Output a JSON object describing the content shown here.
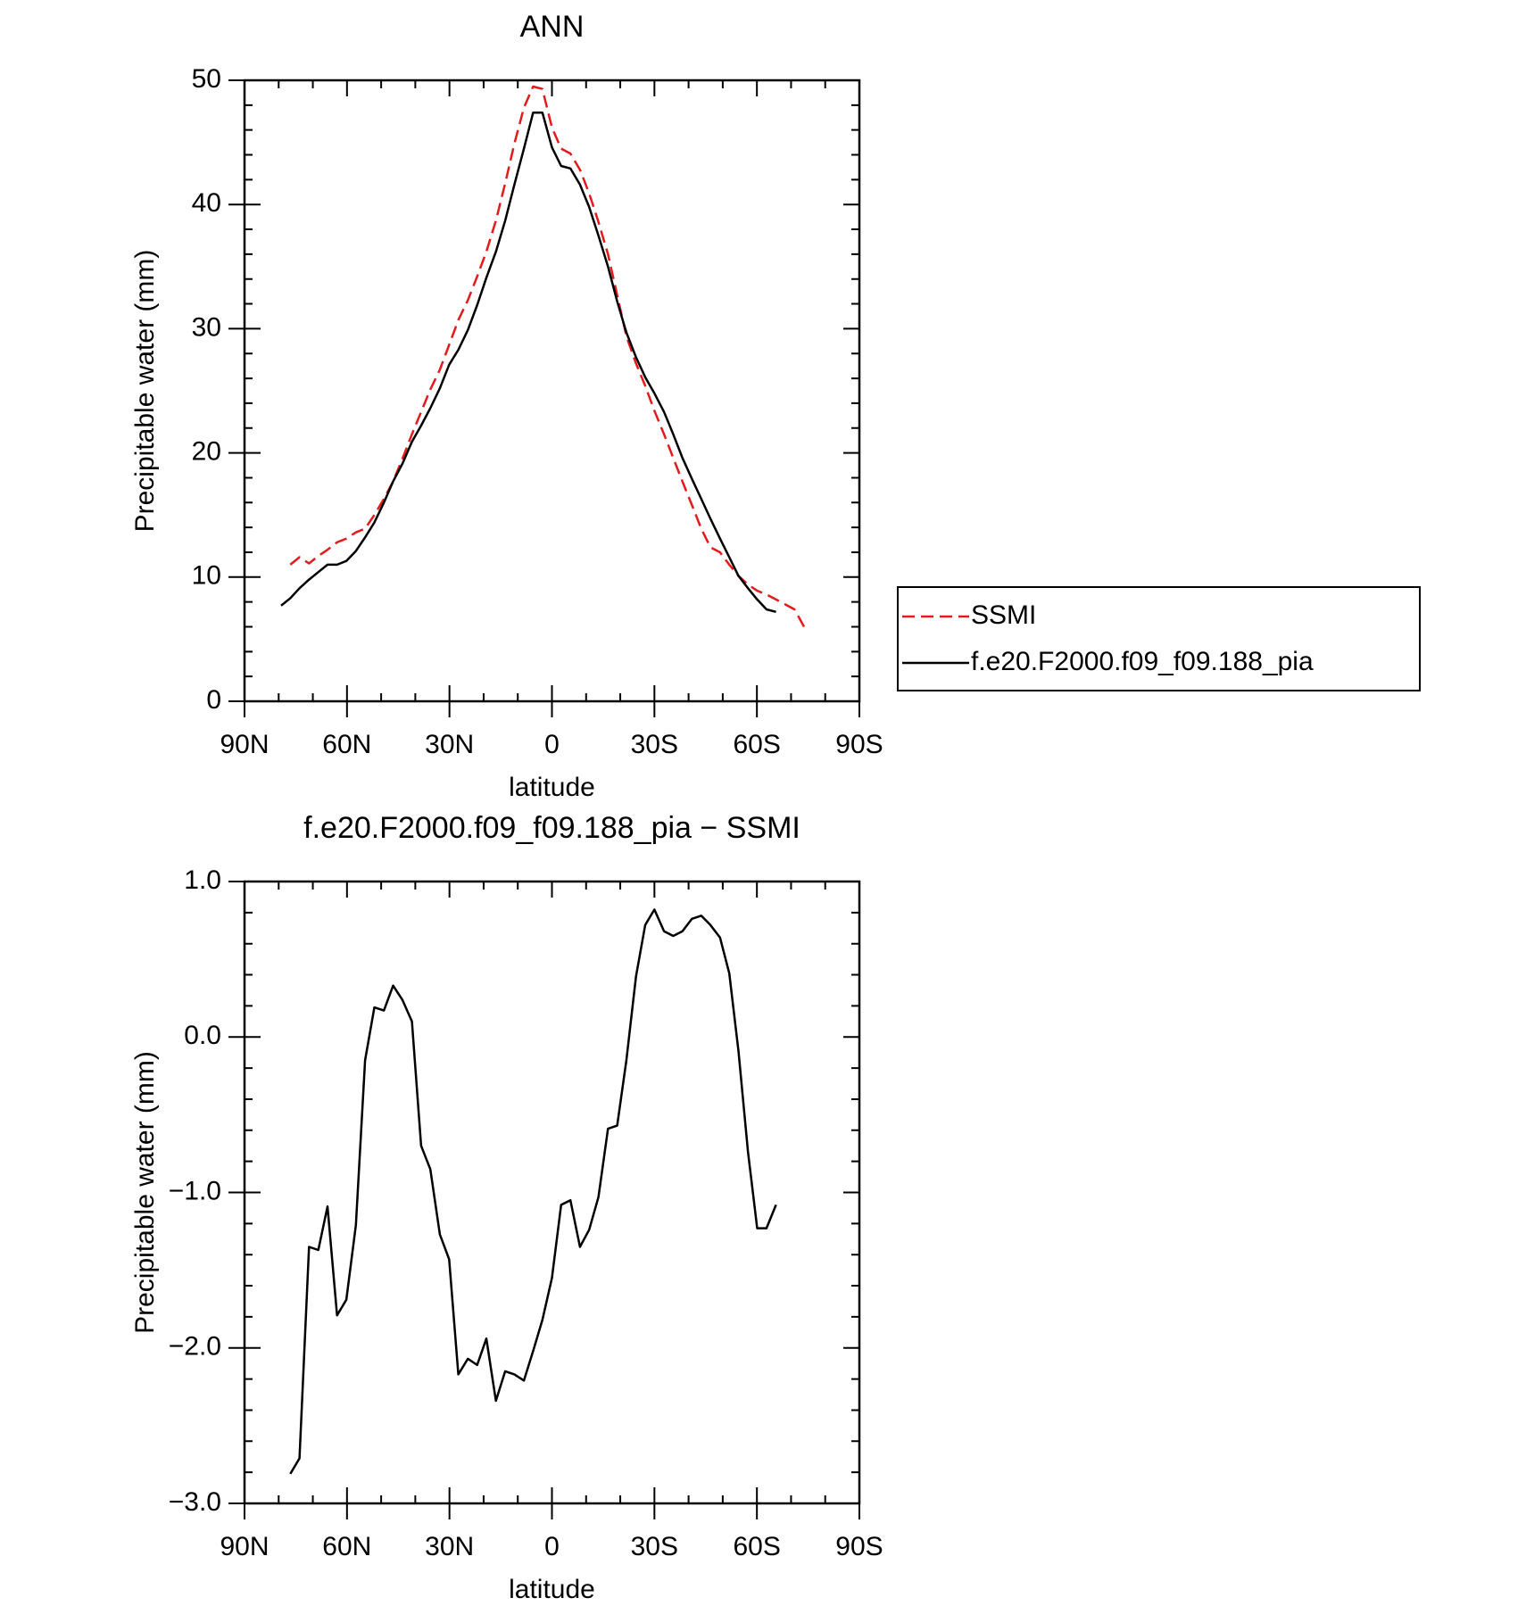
{
  "chart_data": [
    {
      "type": "line",
      "title": "ANN",
      "xlabel": "latitude",
      "ylabel": "Precipitable water (mm)",
      "xlim": [
        90,
        -90
      ],
      "xticks": [
        {
          "value": 90,
          "label": "90N"
        },
        {
          "value": 60,
          "label": "60N"
        },
        {
          "value": 30,
          "label": "30N"
        },
        0,
        {
          "value": -30,
          "label": "30S"
        },
        {
          "value": -60,
          "label": "60S"
        },
        {
          "value": -90,
          "label": "90S"
        }
      ],
      "ylim": [
        0,
        50
      ],
      "yticks": [
        0,
        10,
        20,
        30,
        40,
        50
      ],
      "legend": "right",
      "series": [
        {
          "name": "SSMI",
          "color": "#e41a1c",
          "dash": true,
          "x": [
            76.6,
            73.9,
            71.1,
            68.4,
            65.7,
            62.9,
            60.2,
            57.4,
            54.7,
            52.0,
            49.2,
            46.5,
            43.8,
            41.0,
            38.3,
            35.6,
            32.8,
            30.1,
            27.4,
            24.6,
            21.9,
            19.2,
            16.4,
            13.7,
            11.0,
            8.2,
            5.5,
            2.8,
            0.0,
            -2.7,
            -5.4,
            -8.2,
            -10.9,
            -13.6,
            -16.4,
            -19.1,
            -21.8,
            -24.6,
            -27.3,
            -30.0,
            -32.8,
            -35.5,
            -38.2,
            -41.0,
            -43.7,
            -46.4,
            -49.2,
            -51.9,
            -54.6,
            -57.4,
            -60.1,
            -62.8,
            -65.6,
            -68.3,
            -71.0,
            -74.0
          ],
          "values": [
            11.0,
            11.6,
            11.1,
            11.7,
            12.2,
            12.8,
            13.1,
            13.6,
            13.9,
            15.0,
            16.3,
            17.7,
            19.5,
            21.5,
            23.3,
            25.1,
            26.7,
            28.7,
            30.7,
            32.3,
            34.2,
            36.2,
            38.7,
            41.7,
            44.9,
            47.8,
            49.5,
            49.3,
            46.2,
            44.5,
            44.1,
            42.8,
            40.9,
            38.6,
            36.0,
            32.7,
            29.4,
            27.2,
            25.4,
            23.4,
            21.5,
            19.6,
            17.7,
            15.8,
            13.9,
            12.4,
            12.0,
            11.0,
            10.1,
            9.4,
            8.9,
            8.6,
            8.2,
            7.8,
            7.4,
            5.9
          ]
        },
        {
          "name": "f.e20.F2000.f09_f09.188_pia",
          "color": "#000000",
          "dash": false,
          "x": [
            79.3,
            76.6,
            73.9,
            71.1,
            68.4,
            65.7,
            62.9,
            60.2,
            57.4,
            54.7,
            52.0,
            49.2,
            46.5,
            43.8,
            41.0,
            38.3,
            35.6,
            32.8,
            30.1,
            27.4,
            24.6,
            21.9,
            19.2,
            16.4,
            13.7,
            11.0,
            8.2,
            5.5,
            2.8,
            0.0,
            -2.7,
            -5.4,
            -8.2,
            -10.9,
            -13.6,
            -16.4,
            -19.1,
            -21.8,
            -24.6,
            -27.3,
            -30.0,
            -32.8,
            -35.5,
            -38.2,
            -41.0,
            -43.7,
            -46.4,
            -49.2,
            -51.9,
            -54.6,
            -57.4,
            -60.1,
            -62.8,
            -65.6
          ],
          "values": [
            7.7,
            8.3,
            9.1,
            9.8,
            10.4,
            11.0,
            11.0,
            11.3,
            12.1,
            13.2,
            14.4,
            16.0,
            17.7,
            19.1,
            20.9,
            22.2,
            23.6,
            25.2,
            27.1,
            28.3,
            29.9,
            31.9,
            34.1,
            36.2,
            38.7,
            41.6,
            44.5,
            47.4,
            47.4,
            44.6,
            43.1,
            42.9,
            41.6,
            39.8,
            37.5,
            35.0,
            32.2,
            29.7,
            27.7,
            26.1,
            24.8,
            23.3,
            21.5,
            19.6,
            17.9,
            16.3,
            14.7,
            13.1,
            11.6,
            10.1,
            9.1,
            8.2,
            7.4,
            7.2
          ]
        }
      ]
    },
    {
      "type": "line",
      "title": "f.e20.F2000.f09_f09.188_pia − SSMI",
      "xlabel": "latitude",
      "ylabel": "Precipitable water (mm)",
      "xlim": [
        90,
        -90
      ],
      "xticks": [
        {
          "value": 90,
          "label": "90N"
        },
        {
          "value": 60,
          "label": "60N"
        },
        {
          "value": 30,
          "label": "30N"
        },
        0,
        {
          "value": -30,
          "label": "30S"
        },
        {
          "value": -60,
          "label": "60S"
        },
        {
          "value": -90,
          "label": "90S"
        }
      ],
      "ylim": [
        -3,
        1
      ],
      "yticks": [
        {
          "value": -3,
          "label": "−3.0"
        },
        {
          "value": -2,
          "label": "−2.0"
        },
        {
          "value": -1,
          "label": "−1.0"
        },
        {
          "value": 0,
          "label": "0.0"
        },
        {
          "value": 1,
          "label": "1.0"
        }
      ],
      "series": [
        {
          "color": "#000000",
          "dash": false,
          "x": [
            76.6,
            73.9,
            71.1,
            68.4,
            65.7,
            62.9,
            60.2,
            57.4,
            54.7,
            52.0,
            49.2,
            46.5,
            43.8,
            41.0,
            38.3,
            35.6,
            32.8,
            30.1,
            27.4,
            24.6,
            21.9,
            19.2,
            16.4,
            13.7,
            11.0,
            8.2,
            5.5,
            2.8,
            0.0,
            -2.7,
            -5.4,
            -8.2,
            -10.9,
            -13.6,
            -16.4,
            -19.1,
            -21.8,
            -24.6,
            -27.3,
            -30.0,
            -32.8,
            -35.5,
            -38.2,
            -41.0,
            -43.7,
            -46.4,
            -49.2,
            -51.9,
            -54.6,
            -57.4,
            -60.1,
            -62.8,
            -65.6
          ],
          "values": [
            -2.81,
            -2.71,
            -1.35,
            -1.37,
            -1.09,
            -1.79,
            -1.69,
            -1.21,
            -0.15,
            0.19,
            0.17,
            0.33,
            0.24,
            0.1,
            -0.7,
            -0.85,
            -1.27,
            -1.43,
            -2.17,
            -2.07,
            -2.11,
            -1.94,
            -2.34,
            -2.15,
            -2.17,
            -2.21,
            -2.02,
            -1.82,
            -1.55,
            -1.08,
            -1.05,
            -1.35,
            -1.24,
            -1.03,
            -0.59,
            -0.57,
            -0.15,
            0.39,
            0.72,
            0.82,
            0.68,
            0.65,
            0.68,
            0.76,
            0.78,
            0.72,
            0.64,
            0.41,
            -0.09,
            -0.74,
            -1.23,
            -1.23,
            -1.08
          ]
        }
      ]
    }
  ]
}
